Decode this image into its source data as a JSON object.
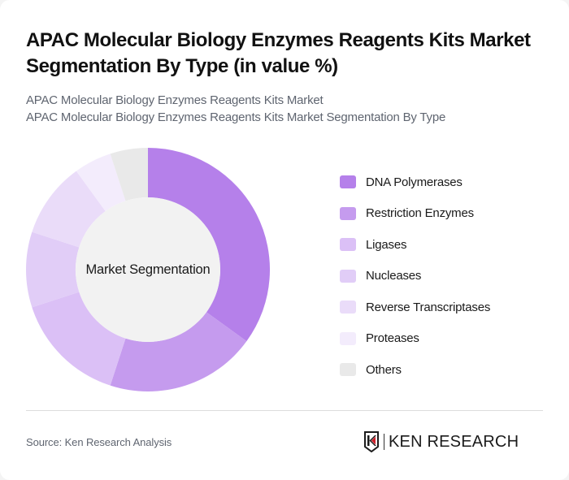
{
  "header": {
    "title": "APAC Molecular Biology Enzymes Reagents Kits Market Segmentation By Type (in value %)",
    "subtitle_lines": [
      "APAC Molecular Biology Enzymes Reagents Kits Market",
      "APAC Molecular Biology Enzymes Reagents Kits Market Segmentation By Type"
    ]
  },
  "chart": {
    "center_label": "Market Segmentation"
  },
  "chart_data": {
    "type": "pie",
    "subtype": "donut",
    "title": "APAC Molecular Biology Enzymes Reagents Kits Market Segmentation By Type (in value %)",
    "center_label": "Market Segmentation",
    "categories": [
      "DNA Polymerases",
      "Restriction Enzymes",
      "Ligases",
      "Nucleases",
      "Reverse Transcriptases",
      "Proteases",
      "Others"
    ],
    "values": [
      35,
      20,
      15,
      10,
      10,
      5,
      5
    ],
    "colors": [
      "#b580ea",
      "#c59bee",
      "#dbc0f6",
      "#e1cdf7",
      "#eadcf9",
      "#f3ecfc",
      "#e9e9e9"
    ],
    "unit": "%",
    "legend_position": "right",
    "start_angle": "12 o'clock, clockwise"
  },
  "legend": {
    "items": [
      {
        "label": "DNA Polymerases",
        "color": "#b580ea"
      },
      {
        "label": "Restriction Enzymes",
        "color": "#c59bee"
      },
      {
        "label": "Ligases",
        "color": "#dbc0f6"
      },
      {
        "label": "Nucleases",
        "color": "#e1cdf7"
      },
      {
        "label": "Reverse Transcriptases",
        "color": "#eadcf9"
      },
      {
        "label": "Proteases",
        "color": "#f3ecfc"
      },
      {
        "label": "Others",
        "color": "#e9e9e9"
      }
    ]
  },
  "footer": {
    "source": "Source: Ken Research Analysis",
    "logo_text": "KEN RESEARCH",
    "logo_accent": "#d0202a"
  }
}
